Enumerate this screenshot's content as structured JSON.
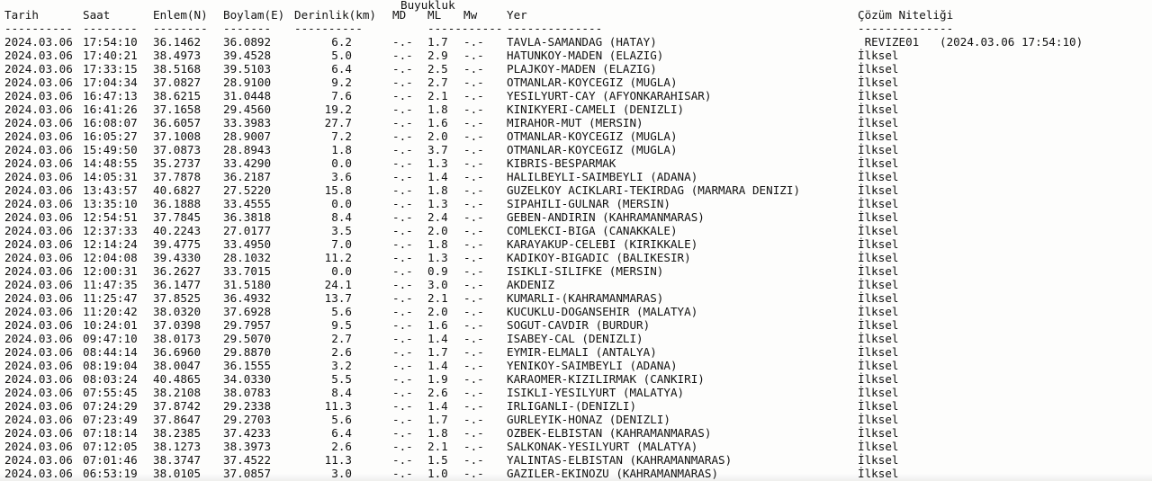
{
  "header": {
    "group_label": "Buyukluk",
    "columns": [
      "Tarih",
      "Saat",
      "Enlem(N)",
      "Boylam(E)",
      "Derinlik(km)",
      "MD",
      "ML",
      "Mw",
      "Yer",
      "Çözüm Niteliği"
    ],
    "dashes": [
      "----------",
      "--------",
      "--------",
      "-------",
      "----------",
      "",
      "-----------",
      "",
      "--------------",
      "--------------"
    ]
  },
  "rows": [
    [
      "2024.03.06",
      "17:54:10",
      "36.1462",
      "36.0892",
      "6.2",
      "-.-",
      "1.7",
      "-.-",
      "TAVLA-SAMANDAG (HATAY)",
      " REVIZE01   (2024.03.06 17:54:10)"
    ],
    [
      "2024.03.06",
      "17:40:21",
      "38.4973",
      "39.4528",
      "5.0",
      "-.-",
      "2.9",
      "-.-",
      "HATUNKOY-MADEN (ELAZIG)",
      "İlksel"
    ],
    [
      "2024.03.06",
      "17:33:15",
      "38.5168",
      "39.5103",
      "6.4",
      "-.-",
      "2.5",
      "-.-",
      "PLAJKOY-MADEN (ELAZIG)",
      "İlksel"
    ],
    [
      "2024.03.06",
      "17:04:34",
      "37.0827",
      "28.9100",
      "9.2",
      "-.-",
      "2.7",
      "-.-",
      "OTMANLAR-KOYCEGIZ (MUGLA)",
      "İlksel"
    ],
    [
      "2024.03.06",
      "16:47:13",
      "38.6215",
      "31.0448",
      "7.6",
      "-.-",
      "2.1",
      "-.-",
      "YESILYURT-CAY (AFYONKARAHISAR)",
      "İlksel"
    ],
    [
      "2024.03.06",
      "16:41:26",
      "37.1658",
      "29.4560",
      "19.2",
      "-.-",
      "1.8",
      "-.-",
      "KINIKYERI-CAMELI (DENIZLI)",
      "İlksel"
    ],
    [
      "2024.03.06",
      "16:08:07",
      "36.6057",
      "33.3983",
      "27.7",
      "-.-",
      "1.6",
      "-.-",
      "MIRAHOR-MUT (MERSIN)",
      "İlksel"
    ],
    [
      "2024.03.06",
      "16:05:27",
      "37.1008",
      "28.9007",
      "7.2",
      "-.-",
      "2.0",
      "-.-",
      "OTMANLAR-KOYCEGIZ (MUGLA)",
      "İlksel"
    ],
    [
      "2024.03.06",
      "15:49:50",
      "37.0873",
      "28.8943",
      "1.8",
      "-.-",
      "3.7",
      "-.-",
      "OTMANLAR-KOYCEGIZ (MUGLA)",
      "İlksel"
    ],
    [
      "2024.03.06",
      "14:48:55",
      "35.2737",
      "33.4290",
      "0.0",
      "-.-",
      "1.3",
      "-.-",
      "KIBRIS-BESPARMAK",
      "İlksel"
    ],
    [
      "2024.03.06",
      "14:05:31",
      "37.7878",
      "36.2187",
      "3.6",
      "-.-",
      "1.4",
      "-.-",
      "HALILBEYLI-SAIMBEYLI (ADANA)",
      "İlksel"
    ],
    [
      "2024.03.06",
      "13:43:57",
      "40.6827",
      "27.5220",
      "15.8",
      "-.-",
      "1.8",
      "-.-",
      "GUZELKOY ACIKLARI-TEKIRDAG (MARMARA DENIZI)",
      "İlksel"
    ],
    [
      "2024.03.06",
      "13:35:10",
      "36.1888",
      "33.4555",
      "0.0",
      "-.-",
      "1.3",
      "-.-",
      "SIPAHILI-GULNAR (MERSIN)",
      "İlksel"
    ],
    [
      "2024.03.06",
      "12:54:51",
      "37.7845",
      "36.3818",
      "8.4",
      "-.-",
      "2.4",
      "-.-",
      "GEBEN-ANDIRIN (KAHRAMANMARAS)",
      "İlksel"
    ],
    [
      "2024.03.06",
      "12:37:33",
      "40.2243",
      "27.0177",
      "3.5",
      "-.-",
      "2.0",
      "-.-",
      "COMLEKCI-BIGA (CANAKKALE)",
      "İlksel"
    ],
    [
      "2024.03.06",
      "12:14:24",
      "39.4775",
      "33.4950",
      "7.0",
      "-.-",
      "1.8",
      "-.-",
      "KARAYAKUP-CELEBI (KIRIKKALE)",
      "İlksel"
    ],
    [
      "2024.03.06",
      "12:04:08",
      "39.4330",
      "28.1032",
      "11.2",
      "-.-",
      "1.3",
      "-.-",
      "KADIKOY-BIGADIC (BALIKESIR)",
      "İlksel"
    ],
    [
      "2024.03.06",
      "12:00:31",
      "36.2627",
      "33.7015",
      "0.0",
      "-.-",
      "0.9",
      "-.-",
      "ISIKLI-SILIFKE (MERSIN)",
      "İlksel"
    ],
    [
      "2024.03.06",
      "11:47:35",
      "36.1477",
      "31.5180",
      "24.1",
      "-.-",
      "3.0",
      "-.-",
      "AKDENIZ",
      "İlksel"
    ],
    [
      "2024.03.06",
      "11:25:47",
      "37.8525",
      "36.4932",
      "13.7",
      "-.-",
      "2.1",
      "-.-",
      "KUMARLI-(KAHRAMANMARAS)",
      "İlksel"
    ],
    [
      "2024.03.06",
      "11:20:42",
      "38.0320",
      "37.6928",
      "5.6",
      "-.-",
      "2.0",
      "-.-",
      "KUCUKLU-DOGANSEHIR (MALATYA)",
      "İlksel"
    ],
    [
      "2024.03.06",
      "10:24:01",
      "37.0398",
      "29.7957",
      "9.5",
      "-.-",
      "1.6",
      "-.-",
      "SOGUT-CAVDIR (BURDUR)",
      "İlksel"
    ],
    [
      "2024.03.06",
      "09:47:10",
      "38.0173",
      "29.5070",
      "2.7",
      "-.-",
      "1.4",
      "-.-",
      "ISABEY-CAL (DENIZLI)",
      "İlksel"
    ],
    [
      "2024.03.06",
      "08:44:14",
      "36.6960",
      "29.8870",
      "2.6",
      "-.-",
      "1.7",
      "-.-",
      "EYMIR-ELMALI (ANTALYA)",
      "İlksel"
    ],
    [
      "2024.03.06",
      "08:19:04",
      "38.0047",
      "36.1555",
      "3.2",
      "-.-",
      "1.4",
      "-.-",
      "YENIKOY-SAIMBEYLI (ADANA)",
      "İlksel"
    ],
    [
      "2024.03.06",
      "08:03:24",
      "40.4865",
      "34.0330",
      "5.5",
      "-.-",
      "1.9",
      "-.-",
      "KARAOMER-KIZILIRMAK (CANKIRI)",
      "İlksel"
    ],
    [
      "2024.03.06",
      "07:55:45",
      "38.2108",
      "38.0783",
      "8.4",
      "-.-",
      "2.6",
      "-.-",
      "ISIKLI-YESILYURT (MALATYA)",
      "İlksel"
    ],
    [
      "2024.03.06",
      "07:24:29",
      "37.8742",
      "29.2338",
      "11.3",
      "-.-",
      "1.4",
      "-.-",
      "IRLIGANLI-(DENIZLI)",
      "İlksel"
    ],
    [
      "2024.03.06",
      "07:23:49",
      "37.8647",
      "29.2703",
      "5.6",
      "-.-",
      "1.7",
      "-.-",
      "GURLEYIK-HONAZ (DENIZLI)",
      "İlksel"
    ],
    [
      "2024.03.06",
      "07:18:14",
      "38.2385",
      "37.4233",
      "6.4",
      "-.-",
      "1.8",
      "-.-",
      "OZBEK-ELBISTAN (KAHRAMANMARAS)",
      "İlksel"
    ],
    [
      "2024.03.06",
      "07:12:05",
      "38.1273",
      "38.3973",
      "2.6",
      "-.-",
      "2.1",
      "-.-",
      "SALKONAK-YESILYURT (MALATYA)",
      "İlksel"
    ],
    [
      "2024.03.06",
      "07:01:46",
      "38.3747",
      "37.4522",
      "11.3",
      "-.-",
      "1.5",
      "-.-",
      "YALINTAS-ELBISTAN (KAHRAMANMARAS)",
      "İlksel"
    ],
    [
      "2024.03.06",
      "06:53:19",
      "38.0105",
      "37.0857",
      "3.0",
      "-.-",
      "1.0",
      "-.-",
      "GAZILER-EKINOZU (KAHRAMANMARAS)",
      "İlksel"
    ]
  ]
}
